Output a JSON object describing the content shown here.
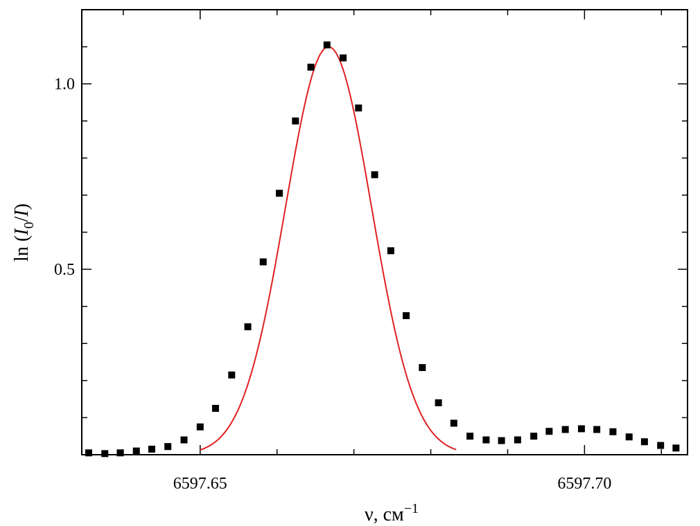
{
  "chart_data": {
    "type": "scatter",
    "title": "",
    "xlabel": {
      "base": "ν, см",
      "sup": "−1"
    },
    "ylabel": {
      "prefix": "ln (",
      "i0": "I",
      "i0_sub": "0",
      "slash": "/",
      "i": "I",
      "suffix": ")"
    },
    "xlim": [
      6597.6346,
      6597.7134
    ],
    "ylim": [
      0.0,
      1.2
    ],
    "x_major_ticks": [
      6597.65,
      6597.7
    ],
    "x_tick_labels": [
      "6597.65",
      "6597.70"
    ],
    "x_minor_step": 0.01,
    "y_major_ticks": [
      0.5,
      1.0
    ],
    "y_tick_labels": [
      "0.5",
      "1.0"
    ],
    "y_minor_step": 0.1,
    "grid": false,
    "legend": "none",
    "series": [
      {
        "kind": "points",
        "color": "#000000",
        "x": [
          6597.6355,
          6597.6376,
          6597.6396,
          6597.6417,
          6597.6437,
          6597.6458,
          6597.6479,
          6597.65,
          6597.652,
          6597.6541,
          6597.6562,
          6597.6582,
          6597.6603,
          6597.6624,
          6597.6644,
          6597.6665,
          6597.6686,
          6597.6706,
          6597.6727,
          6597.6748,
          6597.6768,
          6597.6789,
          6597.681,
          6597.683,
          6597.6851,
          6597.6872,
          6597.6892,
          6597.6913,
          6597.6934,
          6597.6954,
          6597.6975,
          6597.6996,
          6597.7016,
          6597.7037,
          6597.7058,
          6597.7078,
          6597.7099,
          6597.7119
        ],
        "y": [
          0.005,
          0.003,
          0.005,
          0.01,
          0.015,
          0.022,
          0.04,
          0.075,
          0.125,
          0.215,
          0.345,
          0.52,
          0.705,
          0.9,
          1.045,
          1.105,
          1.07,
          0.935,
          0.755,
          0.55,
          0.375,
          0.235,
          0.14,
          0.085,
          0.05,
          0.04,
          0.038,
          0.04,
          0.05,
          0.063,
          0.068,
          0.07,
          0.068,
          0.062,
          0.048,
          0.035,
          0.025,
          0.018
        ]
      },
      {
        "kind": "fit_line",
        "color": "#e02020",
        "model": "gaussian",
        "amplitude": 1.1,
        "center": 6597.6667,
        "sigma": 0.0056,
        "baseline": 0.0,
        "x_range": [
          6597.65,
          6597.6833
        ]
      }
    ]
  }
}
